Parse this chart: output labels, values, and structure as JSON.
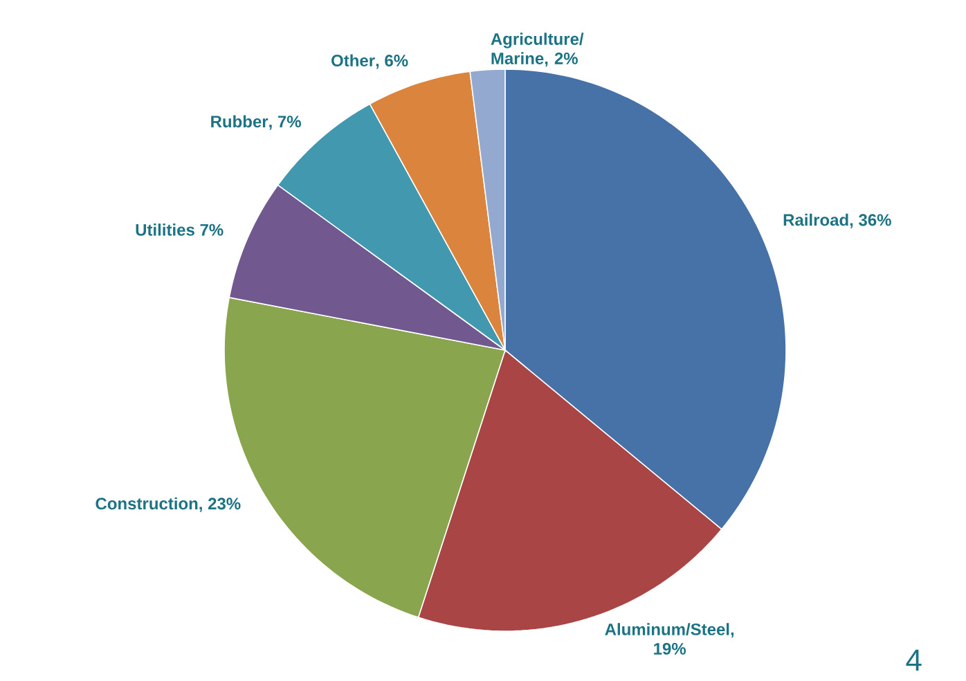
{
  "chart_data": {
    "type": "pie",
    "categories": [
      "Railroad",
      "Aluminum/Steel",
      "Construction",
      "Utilities",
      "Rubber",
      "Other",
      "Agriculture/ Marine"
    ],
    "values": [
      36,
      19,
      23,
      7,
      7,
      6,
      2
    ],
    "value_labels": [
      ", 36%",
      ", 19%",
      ", 23%",
      "7%",
      ", 7%",
      ", 6%",
      ", 2%"
    ],
    "colors": [
      "#4672a8",
      "#a94544",
      "#89a54e",
      "#71588f",
      "#4198af",
      "#db843d",
      "#93a9cf"
    ],
    "annotations": [
      "4"
    ]
  }
}
